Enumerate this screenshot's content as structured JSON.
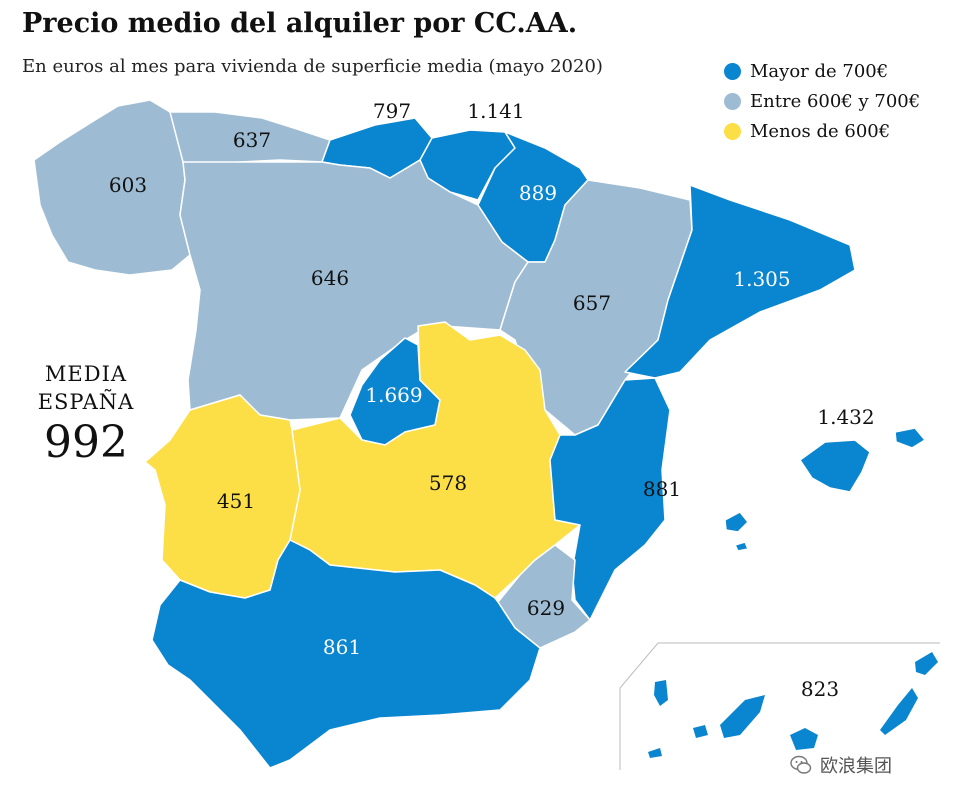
{
  "title": "Precio medio del alquiler por CC.AA.",
  "subtitle": "En euros al mes para vivienda de superficie media (mayo 2020)",
  "colors": {
    "high": "#0a85cf",
    "mid": "#9dbcd3",
    "low": "#fcde46",
    "border": "#ffffff",
    "label_dark": "#111111",
    "label_light": "#ffffff"
  },
  "legend": [
    {
      "label": "Mayor de 700€",
      "color": "#0a85cf"
    },
    {
      "label": "Entre 600€ y 700€",
      "color": "#9dbcd3"
    },
    {
      "label": "Menos de 600€",
      "color": "#fcde46"
    }
  ],
  "average": {
    "label_line1": "MEDIA",
    "label_line2": "ESPAÑA",
    "value": "992"
  },
  "regions": {
    "galicia": "603",
    "asturias": "637",
    "cantabria": "797",
    "pais_vasco": "1.141",
    "navarra": "889",
    "castilla_leon": "646",
    "aragon": "657",
    "cataluna": "1.305",
    "madrid": "1.669",
    "baleares": "1.432",
    "extremadura": "451",
    "castilla_la_mancha": "578",
    "valencia": "881",
    "murcia": "629",
    "andalucia": "861",
    "canarias": "823"
  },
  "watermark": "欧浪集团"
}
